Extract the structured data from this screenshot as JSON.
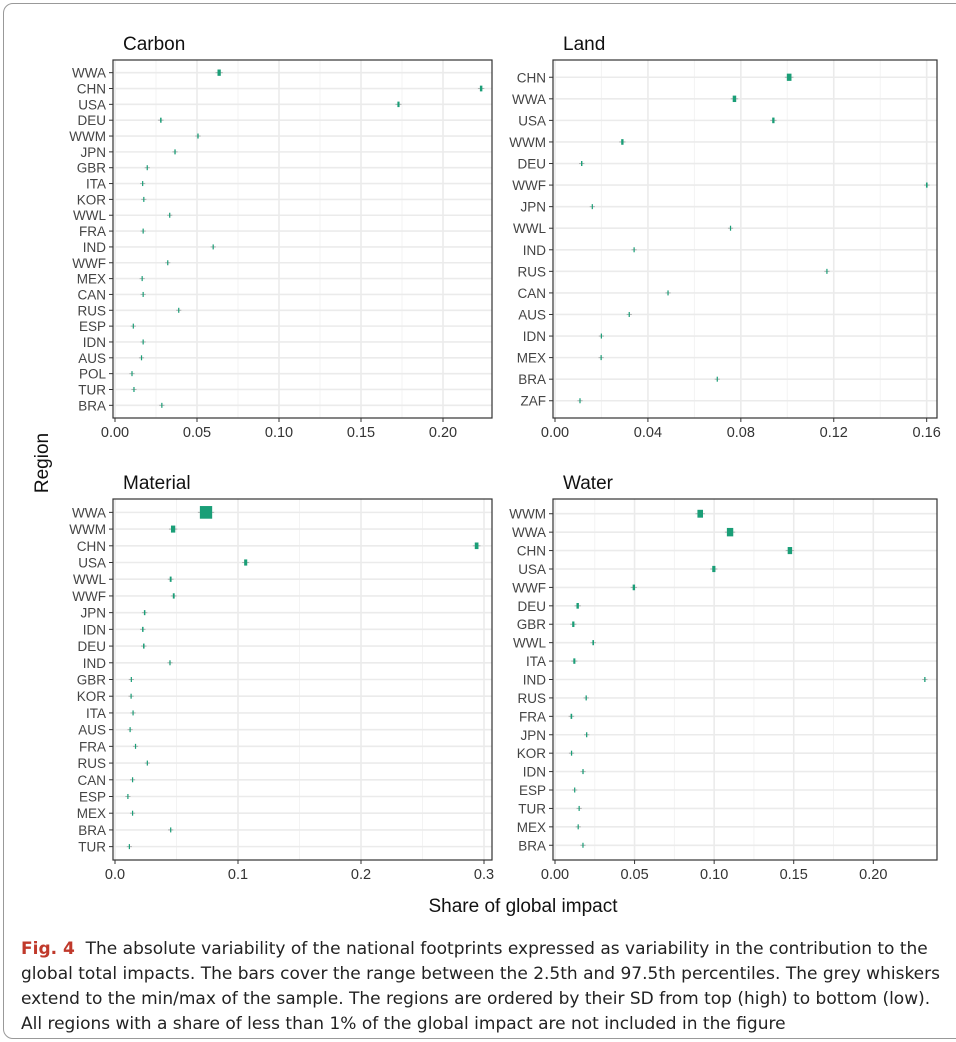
{
  "figure": {
    "ylabel": "Region",
    "xlabel": "Share of global impact",
    "caption_label": "Fig. 4",
    "caption_text": "The absolute variability of the national footprints expressed as variability in the contribution to the global total impacts. The bars cover the range between the 2.5th and 97.5th percentiles. The grey whiskers extend to the min/max of the sample. The regions are ordered by their SD from top (high) to bottom (low). All regions with a share of less than 1% of the global impact are not included in the figure",
    "colors": {
      "bar": "#1a9e77",
      "grid": "#ebebeb",
      "whisker": "#b0b0b0",
      "frame": "#333333"
    }
  },
  "chart_data": [
    {
      "type": "boxplot",
      "title": "Carbon",
      "xlim": [
        0,
        0.225
      ],
      "xticks": [
        0.0,
        0.05,
        0.1,
        0.15,
        0.2
      ],
      "xticklabels": [
        "0.00",
        "0.05",
        "0.10",
        "0.15",
        "0.20"
      ],
      "categories": [
        "WWA",
        "CHN",
        "USA",
        "DEU",
        "WWM",
        "JPN",
        "GBR",
        "ITA",
        "KOR",
        "WWL",
        "FRA",
        "IND",
        "WWF",
        "MEX",
        "CAN",
        "RUS",
        "ESP",
        "IDN",
        "AUS",
        "POL",
        "TUR",
        "BRA"
      ],
      "values": [
        [
          0.0625,
          0.0645
        ],
        [
          0.2225,
          0.224
        ],
        [
          0.1722,
          0.1735
        ],
        [
          0.0275,
          0.0284
        ],
        [
          0.0502,
          0.051
        ],
        [
          0.0362,
          0.037
        ],
        [
          0.0193,
          0.02
        ],
        [
          0.0165,
          0.0171
        ],
        [
          0.0172,
          0.0178
        ],
        [
          0.033,
          0.0336
        ],
        [
          0.0168,
          0.0174
        ],
        [
          0.0595,
          0.06
        ],
        [
          0.0318,
          0.0324
        ],
        [
          0.0162,
          0.0167
        ],
        [
          0.0168,
          0.0173
        ],
        [
          0.0385,
          0.039
        ],
        [
          0.0108,
          0.0112
        ],
        [
          0.0168,
          0.0172
        ],
        [
          0.0158,
          0.0162
        ],
        [
          0.01,
          0.0104
        ],
        [
          0.0112,
          0.0116
        ],
        [
          0.0282,
          0.0286
        ]
      ]
    },
    {
      "type": "boxplot",
      "title": "Land",
      "xlim": [
        0,
        0.161
      ],
      "xticks": [
        0.0,
        0.04,
        0.08,
        0.12,
        0.16
      ],
      "xticklabels": [
        "0.00",
        "0.04",
        "0.08",
        "0.12",
        "0.16"
      ],
      "categories": [
        "CHN",
        "WWA",
        "USA",
        "WWM",
        "DEU",
        "WWF",
        "JPN",
        "WWL",
        "IND",
        "RUS",
        "CAN",
        "AUS",
        "IDN",
        "MEX",
        "BRA",
        "ZAF"
      ],
      "values": [
        [
          0.0998,
          0.1018
        ],
        [
          0.0765,
          0.078
        ],
        [
          0.0935,
          0.0945
        ],
        [
          0.0285,
          0.0295
        ],
        [
          0.0112,
          0.0118
        ],
        [
          0.1597,
          0.1604
        ],
        [
          0.0158,
          0.0162
        ],
        [
          0.0753,
          0.0758
        ],
        [
          0.0338,
          0.0342
        ],
        [
          0.1168,
          0.1172
        ],
        [
          0.0484,
          0.0488
        ],
        [
          0.0317,
          0.0321
        ],
        [
          0.0197,
          0.02
        ],
        [
          0.0196,
          0.0199
        ],
        [
          0.0696,
          0.0699
        ],
        [
          0.0105,
          0.0108
        ]
      ]
    },
    {
      "type": "boxplot",
      "title": "Material",
      "xlim": [
        0,
        0.3
      ],
      "xticks": [
        0.0,
        0.1,
        0.2,
        0.3
      ],
      "xticklabels": [
        "0.0",
        "0.1",
        "0.2",
        "0.3"
      ],
      "categories": [
        "WWA",
        "WWM",
        "CHN",
        "USA",
        "WWL",
        "WWF",
        "JPN",
        "IDN",
        "DEU",
        "IND",
        "GBR",
        "KOR",
        "ITA",
        "AUS",
        "FRA",
        "RUS",
        "CAN",
        "ESP",
        "MEX",
        "BRA",
        "TUR"
      ],
      "values": [
        [
          0.069,
          0.079
        ],
        [
          0.0455,
          0.049
        ],
        [
          0.2925,
          0.2955
        ],
        [
          0.105,
          0.1075
        ],
        [
          0.0445,
          0.046
        ],
        [
          0.047,
          0.0485
        ],
        [
          0.0235,
          0.0247
        ],
        [
          0.022,
          0.0232
        ],
        [
          0.0228,
          0.024
        ],
        [
          0.0442,
          0.0452
        ],
        [
          0.0128,
          0.0136
        ],
        [
          0.0126,
          0.0133
        ],
        [
          0.0142,
          0.015
        ],
        [
          0.0118,
          0.0125
        ],
        [
          0.0162,
          0.017
        ],
        [
          0.0258,
          0.0265
        ],
        [
          0.0138,
          0.0144
        ],
        [
          0.01,
          0.0106
        ],
        [
          0.0138,
          0.0143
        ],
        [
          0.0448,
          0.0453
        ],
        [
          0.0112,
          0.0117
        ]
      ]
    },
    {
      "type": "boxplot",
      "title": "Water",
      "xlim": [
        0,
        0.235
      ],
      "xticks": [
        0.0,
        0.05,
        0.1,
        0.15,
        0.2
      ],
      "xticklabels": [
        "0.00",
        "0.05",
        "0.10",
        "0.15",
        "0.20"
      ],
      "categories": [
        "WWM",
        "WWA",
        "CHN",
        "USA",
        "WWF",
        "DEU",
        "GBR",
        "WWL",
        "ITA",
        "IND",
        "RUS",
        "FRA",
        "JPN",
        "KOR",
        "IDN",
        "ESP",
        "TUR",
        "MEX",
        "BRA"
      ],
      "values": [
        [
          0.0895,
          0.093
        ],
        [
          0.108,
          0.112
        ],
        [
          0.1462,
          0.149
        ],
        [
          0.0988,
          0.1008
        ],
        [
          0.0488,
          0.0503
        ],
        [
          0.0135,
          0.015
        ],
        [
          0.0108,
          0.0122
        ],
        [
          0.0235,
          0.0245
        ],
        [
          0.0115,
          0.0128
        ],
        [
          0.232,
          0.2328
        ],
        [
          0.0192,
          0.02
        ],
        [
          0.0098,
          0.0108
        ],
        [
          0.0195,
          0.0203
        ],
        [
          0.01,
          0.0108
        ],
        [
          0.0172,
          0.018
        ],
        [
          0.012,
          0.0126
        ],
        [
          0.0148,
          0.0153
        ],
        [
          0.0142,
          0.0147
        ],
        [
          0.0172,
          0.0177
        ]
      ]
    }
  ]
}
